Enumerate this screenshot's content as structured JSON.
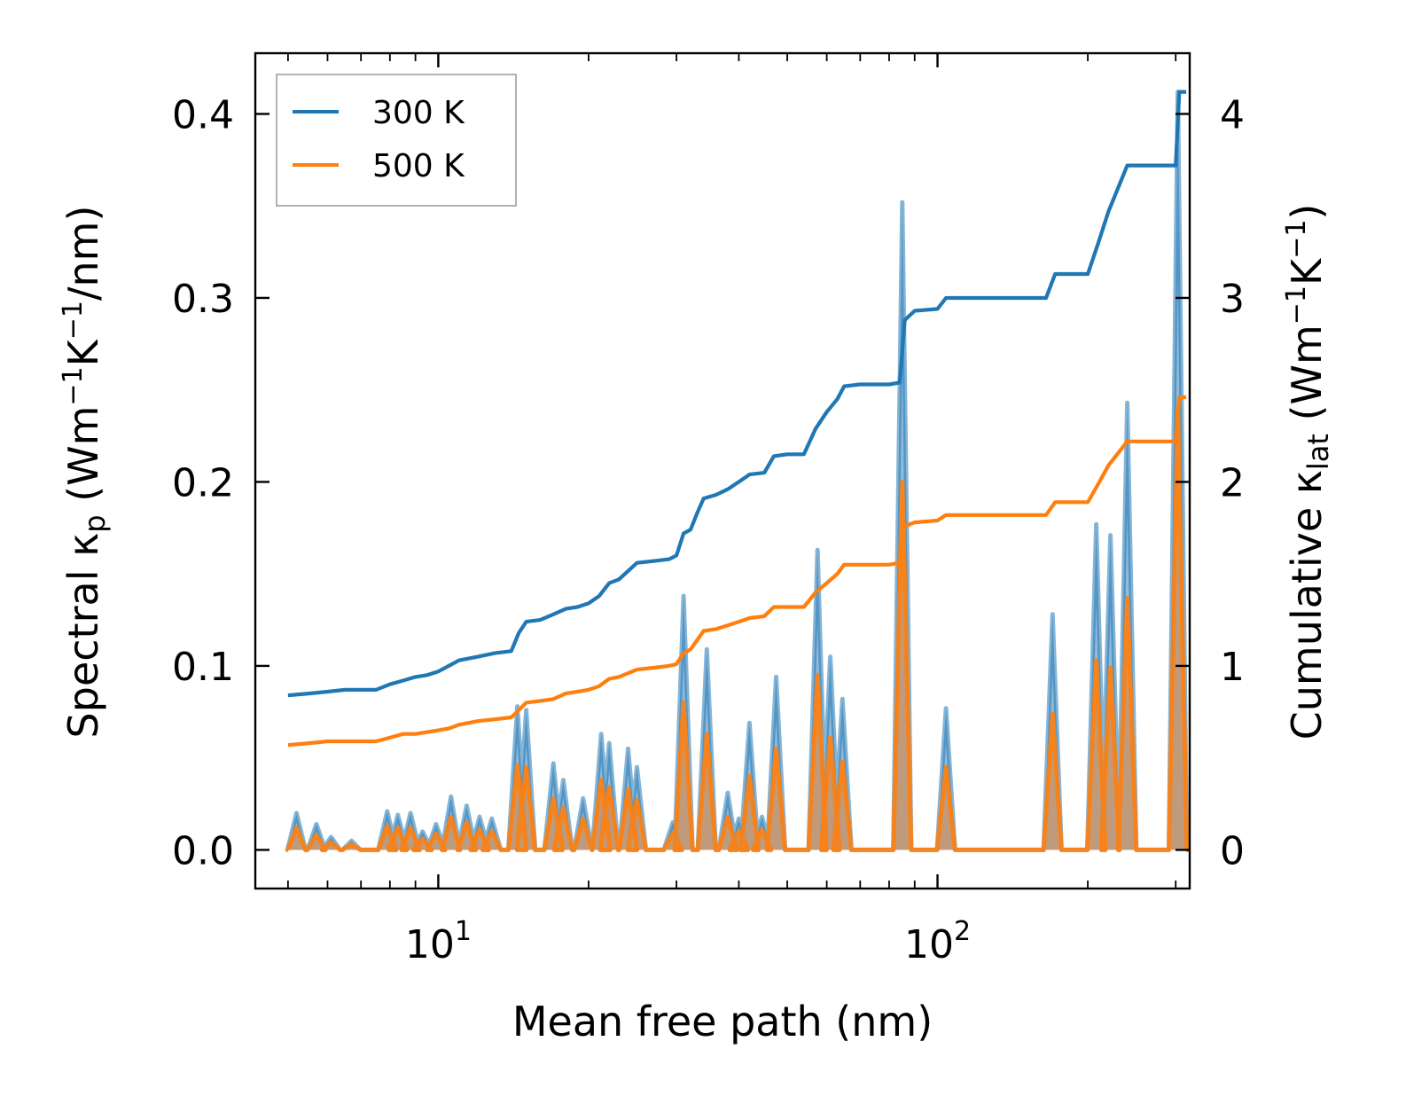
{
  "chart_data": {
    "type": "line",
    "xscale": "log",
    "xlim": [
      4.3,
      320
    ],
    "ylim_left": [
      -0.021,
      0.433
    ],
    "ylim_right": [
      -0.21,
      4.33
    ],
    "xlabel": "Mean free path (nm)",
    "ylabel_left": "Spectral κp (Wm−1K−1/nm)",
    "ylabel_right": "Cumulative κlat (Wm−1K−1)",
    "y_left_ticks": [
      0.0,
      0.1,
      0.2,
      0.3,
      0.4
    ],
    "y_left_tick_labels": [
      "0.0",
      "0.1",
      "0.2",
      "0.3",
      "0.4"
    ],
    "y_right_ticks": [
      0,
      1,
      2,
      3,
      4
    ],
    "y_right_tick_labels": [
      "0",
      "1",
      "2",
      "3",
      "4"
    ],
    "x_major_ticks": [
      10,
      100
    ],
    "x_major_tick_labels": [
      "10",
      "10"
    ],
    "x_major_tick_exponents": [
      "1",
      "2"
    ],
    "x_minor_ticks": [
      5,
      6,
      7,
      8,
      9,
      20,
      30,
      40,
      50,
      60,
      70,
      80,
      90,
      200,
      300
    ],
    "legend": {
      "position": "top-left",
      "entries": [
        "300 K",
        "500 K"
      ]
    },
    "colors": {
      "300K": "#1f77b4",
      "500K": "#ff7f0e",
      "fill_300K": "#6fa4cc",
      "fill_500K": "#c8956a"
    },
    "series": [
      {
        "name": "300 K",
        "axis": "right",
        "kind": "cumulative",
        "points": [
          [
            5.0,
            0.84
          ],
          [
            5.5,
            0.85
          ],
          [
            6.0,
            0.86
          ],
          [
            6.5,
            0.87
          ],
          [
            7.5,
            0.87
          ],
          [
            8.0,
            0.9
          ],
          [
            8.5,
            0.92
          ],
          [
            9.0,
            0.94
          ],
          [
            9.5,
            0.95
          ],
          [
            10.0,
            0.97
          ],
          [
            10.5,
            1.0
          ],
          [
            11.0,
            1.03
          ],
          [
            12.0,
            1.05
          ],
          [
            13.0,
            1.07
          ],
          [
            14.0,
            1.08
          ],
          [
            14.5,
            1.18
          ],
          [
            15.0,
            1.24
          ],
          [
            16.0,
            1.25
          ],
          [
            17.0,
            1.28
          ],
          [
            18.0,
            1.31
          ],
          [
            19.0,
            1.32
          ],
          [
            20.0,
            1.34
          ],
          [
            21.0,
            1.38
          ],
          [
            22.0,
            1.45
          ],
          [
            23.0,
            1.47
          ],
          [
            25.0,
            1.56
          ],
          [
            27.0,
            1.57
          ],
          [
            29.0,
            1.58
          ],
          [
            30.0,
            1.6
          ],
          [
            31.0,
            1.72
          ],
          [
            32.0,
            1.74
          ],
          [
            33.0,
            1.83
          ],
          [
            34.0,
            1.91
          ],
          [
            36.0,
            1.93
          ],
          [
            38.0,
            1.96
          ],
          [
            40.0,
            2.0
          ],
          [
            41.0,
            2.02
          ],
          [
            42.0,
            2.04
          ],
          [
            45.0,
            2.05
          ],
          [
            47.0,
            2.14
          ],
          [
            50.0,
            2.15
          ],
          [
            54.0,
            2.15
          ],
          [
            57.0,
            2.29
          ],
          [
            60.0,
            2.38
          ],
          [
            63.0,
            2.45
          ],
          [
            65.0,
            2.52
          ],
          [
            70.0,
            2.53
          ],
          [
            80.0,
            2.53
          ],
          [
            84.0,
            2.54
          ],
          [
            86.0,
            2.88
          ],
          [
            90.0,
            2.93
          ],
          [
            100.0,
            2.94
          ],
          [
            104.0,
            3.0
          ],
          [
            120.0,
            3.0
          ],
          [
            150.0,
            3.0
          ],
          [
            165.0,
            3.0
          ],
          [
            172.0,
            3.13
          ],
          [
            200.0,
            3.13
          ],
          [
            210.0,
            3.3
          ],
          [
            220.0,
            3.47
          ],
          [
            240.0,
            3.72
          ],
          [
            280.0,
            3.72
          ],
          [
            300.0,
            3.72
          ],
          [
            305.0,
            4.12
          ],
          [
            315.0,
            4.12
          ]
        ]
      },
      {
        "name": "500 K",
        "axis": "right",
        "kind": "cumulative",
        "points": [
          [
            5.0,
            0.57
          ],
          [
            5.5,
            0.58
          ],
          [
            6.0,
            0.59
          ],
          [
            6.5,
            0.59
          ],
          [
            7.5,
            0.59
          ],
          [
            8.0,
            0.61
          ],
          [
            8.5,
            0.63
          ],
          [
            9.0,
            0.63
          ],
          [
            9.5,
            0.64
          ],
          [
            10.0,
            0.65
          ],
          [
            10.5,
            0.66
          ],
          [
            11.0,
            0.68
          ],
          [
            12.0,
            0.7
          ],
          [
            13.0,
            0.71
          ],
          [
            14.0,
            0.72
          ],
          [
            14.5,
            0.76
          ],
          [
            15.0,
            0.8
          ],
          [
            16.0,
            0.81
          ],
          [
            17.0,
            0.82
          ],
          [
            18.0,
            0.85
          ],
          [
            19.0,
            0.86
          ],
          [
            20.0,
            0.87
          ],
          [
            21.0,
            0.89
          ],
          [
            22.0,
            0.93
          ],
          [
            23.0,
            0.94
          ],
          [
            25.0,
            0.98
          ],
          [
            27.0,
            0.99
          ],
          [
            29.0,
            1.0
          ],
          [
            30.0,
            1.01
          ],
          [
            31.0,
            1.07
          ],
          [
            32.0,
            1.09
          ],
          [
            33.0,
            1.14
          ],
          [
            34.0,
            1.19
          ],
          [
            36.0,
            1.2
          ],
          [
            38.0,
            1.22
          ],
          [
            40.0,
            1.24
          ],
          [
            41.0,
            1.25
          ],
          [
            42.0,
            1.26
          ],
          [
            45.0,
            1.27
          ],
          [
            47.0,
            1.32
          ],
          [
            50.0,
            1.32
          ],
          [
            54.0,
            1.32
          ],
          [
            57.0,
            1.4
          ],
          [
            60.0,
            1.45
          ],
          [
            63.0,
            1.5
          ],
          [
            65.0,
            1.55
          ],
          [
            70.0,
            1.55
          ],
          [
            80.0,
            1.55
          ],
          [
            84.0,
            1.56
          ],
          [
            86.0,
            1.76
          ],
          [
            90.0,
            1.78
          ],
          [
            100.0,
            1.79
          ],
          [
            104.0,
            1.82
          ],
          [
            120.0,
            1.82
          ],
          [
            150.0,
            1.82
          ],
          [
            165.0,
            1.82
          ],
          [
            172.0,
            1.89
          ],
          [
            200.0,
            1.89
          ],
          [
            210.0,
            1.99
          ],
          [
            220.0,
            2.09
          ],
          [
            240.0,
            2.22
          ],
          [
            280.0,
            2.22
          ],
          [
            300.0,
            2.22
          ],
          [
            305.0,
            2.46
          ],
          [
            315.0,
            2.46
          ]
        ]
      },
      {
        "name": "300 K spectral",
        "axis": "left",
        "kind": "spectral",
        "peaks": [
          [
            5.2,
            0.02
          ],
          [
            5.7,
            0.014
          ],
          [
            6.1,
            0.007
          ],
          [
            6.7,
            0.005
          ],
          [
            7.9,
            0.021
          ],
          [
            8.3,
            0.019
          ],
          [
            8.8,
            0.02
          ],
          [
            9.3,
            0.01
          ],
          [
            9.9,
            0.014
          ],
          [
            10.6,
            0.029
          ],
          [
            11.4,
            0.024
          ],
          [
            12.1,
            0.018
          ],
          [
            12.8,
            0.017
          ],
          [
            14.4,
            0.078
          ],
          [
            15.0,
            0.076
          ],
          [
            17.0,
            0.047
          ],
          [
            17.8,
            0.038
          ],
          [
            19.5,
            0.028
          ],
          [
            21.2,
            0.063
          ],
          [
            22.0,
            0.058
          ],
          [
            24.0,
            0.055
          ],
          [
            25.0,
            0.045
          ],
          [
            29.5,
            0.015
          ],
          [
            31.0,
            0.138
          ],
          [
            34.5,
            0.109
          ],
          [
            38.0,
            0.031
          ],
          [
            40.0,
            0.017
          ],
          [
            42.0,
            0.069
          ],
          [
            44.5,
            0.018
          ],
          [
            47.5,
            0.094
          ],
          [
            57.5,
            0.163
          ],
          [
            61.0,
            0.105
          ],
          [
            64.5,
            0.082
          ],
          [
            85.0,
            0.352
          ],
          [
            104.0,
            0.077
          ],
          [
            170.0,
            0.128
          ],
          [
            208.0,
            0.177
          ],
          [
            222.0,
            0.171
          ],
          [
            240.0,
            0.243
          ],
          [
            303.0,
            0.412
          ]
        ]
      },
      {
        "name": "500 K spectral",
        "axis": "left",
        "kind": "spectral",
        "peaks": [
          [
            5.2,
            0.012
          ],
          [
            5.7,
            0.008
          ],
          [
            6.1,
            0.004
          ],
          [
            6.7,
            0.003
          ],
          [
            7.9,
            0.013
          ],
          [
            8.3,
            0.012
          ],
          [
            8.8,
            0.012
          ],
          [
            9.3,
            0.006
          ],
          [
            9.9,
            0.009
          ],
          [
            10.6,
            0.018
          ],
          [
            11.4,
            0.015
          ],
          [
            12.1,
            0.011
          ],
          [
            12.8,
            0.01
          ],
          [
            14.4,
            0.046
          ],
          [
            15.0,
            0.045
          ],
          [
            17.0,
            0.028
          ],
          [
            17.8,
            0.023
          ],
          [
            19.5,
            0.017
          ],
          [
            21.2,
            0.038
          ],
          [
            22.0,
            0.034
          ],
          [
            24.0,
            0.033
          ],
          [
            25.0,
            0.027
          ],
          [
            29.5,
            0.009
          ],
          [
            31.0,
            0.08
          ],
          [
            34.5,
            0.063
          ],
          [
            38.0,
            0.018
          ],
          [
            40.0,
            0.01
          ],
          [
            42.0,
            0.04
          ],
          [
            44.5,
            0.011
          ],
          [
            47.5,
            0.055
          ],
          [
            57.5,
            0.095
          ],
          [
            61.0,
            0.061
          ],
          [
            64.5,
            0.048
          ],
          [
            85.0,
            0.2
          ],
          [
            104.0,
            0.045
          ],
          [
            170.0,
            0.074
          ],
          [
            208.0,
            0.103
          ],
          [
            222.0,
            0.099
          ],
          [
            240.0,
            0.137
          ],
          [
            303.0,
            0.24
          ]
        ]
      }
    ]
  }
}
